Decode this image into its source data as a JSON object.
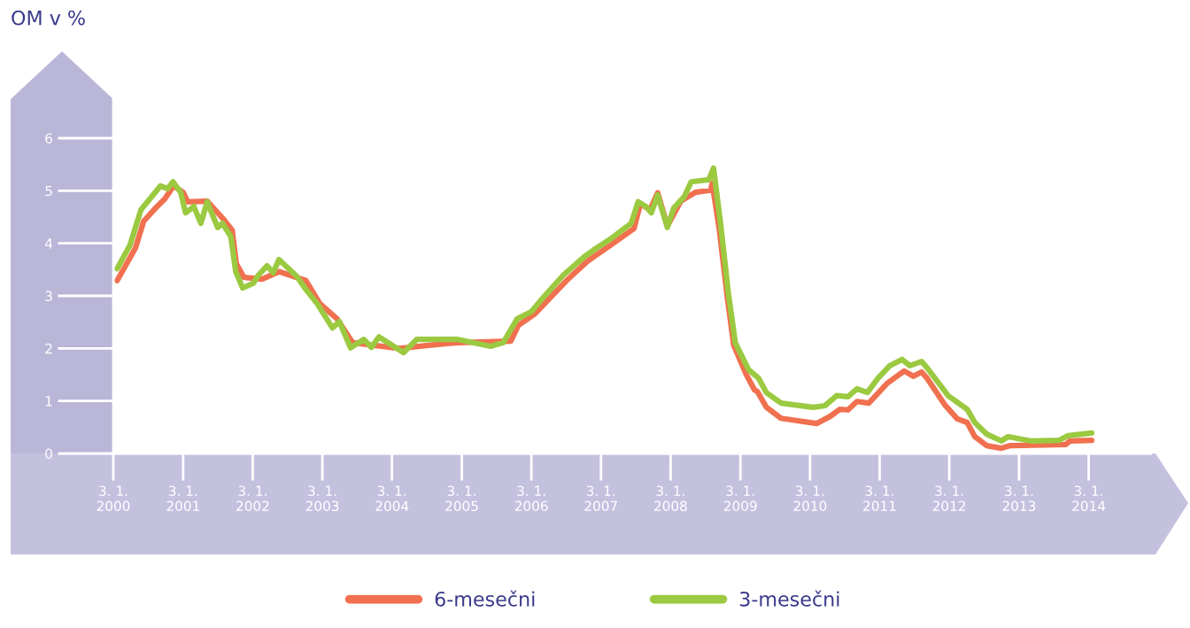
{
  "chart_data": {
    "type": "line",
    "ylabel": "OM v %",
    "xlim": [
      "2000-01-03",
      "2014-11-26"
    ],
    "ylim": [
      0,
      7.5
    ],
    "yticks": [
      0,
      1,
      2,
      3,
      4,
      5,
      6
    ],
    "xticks": [
      {
        "value": "2000-01-03",
        "label": "3. 1.\n2000"
      },
      {
        "value": "2001-01-03",
        "label": "3. 1.\n2001"
      },
      {
        "value": "2002-01-03",
        "label": "3. 1.\n2002"
      },
      {
        "value": "2003-01-03",
        "label": "3. 1.\n2003"
      },
      {
        "value": "2004-01-03",
        "label": "3. 1.\n2004"
      },
      {
        "value": "2005-01-03",
        "label": "3. 1.\n2005"
      },
      {
        "value": "2006-01-03",
        "label": "3. 1.\n2006"
      },
      {
        "value": "2007-01-03",
        "label": "3. 1.\n2007"
      },
      {
        "value": "2008-01-03",
        "label": "3. 1.\n2008"
      },
      {
        "value": "2009-01-03",
        "label": "3. 1.\n2009"
      },
      {
        "value": "2010-01-03",
        "label": "3. 1.\n2010"
      },
      {
        "value": "2011-01-03",
        "label": "3. 1.\n2011"
      },
      {
        "value": "2012-01-03",
        "label": "3. 1.\n2012"
      },
      {
        "value": "2013-01-03",
        "label": "3. 1.\n2013"
      },
      {
        "value": "2014-01-03",
        "label": "3. 1.\n2014"
      }
    ],
    "grid": false,
    "legend": "bottom",
    "marker": "none",
    "line_style": "solid",
    "series": [
      {
        "name": "6-mesečni",
        "color": "#f0704f",
        "x": [
          "2000-01-23",
          "2000-04-28",
          "2000-06-10",
          "2000-08-19",
          "2000-09-28",
          "2000-11-14",
          "2001-01-03",
          "2001-01-27",
          "2001-05-09",
          "2001-07-31",
          "2001-09-17",
          "2001-10-09",
          "2001-11-18",
          "2002-02-21",
          "2002-05-23",
          "2002-10-09",
          "2002-12-21",
          "2003-03-22",
          "2003-06-10",
          "2004-02-10",
          "2004-07-13",
          "2004-12-14",
          "2005-09-17",
          "2005-10-27",
          "2006-01-19",
          "2006-07-06",
          "2006-10-24",
          "2007-02-21",
          "2007-06-25",
          "2007-07-28",
          "2007-09-17",
          "2007-10-27",
          "2007-12-17",
          "2008-02-25",
          "2008-05-12",
          "2008-07-31",
          "2008-08-08",
          "2008-09-13",
          "2008-10-27",
          "2008-11-29",
          "2009-02-03",
          "2009-03-18",
          "2009-04-02",
          "2009-05-19",
          "2009-08-04",
          "2010-02-06",
          "2010-04-20",
          "2010-06-07",
          "2010-07-21",
          "2010-09-06",
          "2010-11-07",
          "2011-02-10",
          "2011-05-12",
          "2011-06-29",
          "2011-08-11",
          "2011-09-09",
          "2011-12-10",
          "2012-02-14",
          "2012-04-06",
          "2012-05-16",
          "2012-07-17",
          "2012-10-02",
          "2012-11-18",
          "2013-09-03",
          "2013-09-28",
          "2014-01-19"
        ],
        "values": [
          3.29,
          3.91,
          4.42,
          4.7,
          4.84,
          5.09,
          4.97,
          4.79,
          4.8,
          4.47,
          4.25,
          3.61,
          3.35,
          3.32,
          3.46,
          3.29,
          2.85,
          2.56,
          2.11,
          2.0,
          2.06,
          2.11,
          2.14,
          2.44,
          2.65,
          3.29,
          3.66,
          3.96,
          4.28,
          4.75,
          4.64,
          4.96,
          4.33,
          4.8,
          4.97,
          5.01,
          5.14,
          4.3,
          2.95,
          2.06,
          1.5,
          1.21,
          1.18,
          0.88,
          0.67,
          0.57,
          0.71,
          0.84,
          0.83,
          0.99,
          0.96,
          1.33,
          1.57,
          1.47,
          1.55,
          1.43,
          0.93,
          0.66,
          0.59,
          0.32,
          0.15,
          0.1,
          0.15,
          0.17,
          0.24,
          0.25
        ]
      },
      {
        "name": "3-mesečni",
        "color": "#9bc940",
        "x": [
          "2000-01-23",
          "2000-03-30",
          "2000-05-27",
          "2000-09-06",
          "2000-10-13",
          "2000-11-11",
          "2000-12-21",
          "2001-01-16",
          "2001-02-28",
          "2001-04-06",
          "2001-05-09",
          "2001-07-03",
          "2001-07-28",
          "2001-09-10",
          "2001-10-06",
          "2001-11-11",
          "2002-01-06",
          "2002-02-03",
          "2002-03-19",
          "2002-04-20",
          "2002-05-20",
          "2002-08-22",
          "2002-10-09",
          "2002-12-07",
          "2003-02-25",
          "2003-04-02",
          "2003-05-31",
          "2003-08-08",
          "2003-09-17",
          "2003-10-27",
          "2004-03-04",
          "2004-05-12",
          "2004-08-30",
          "2004-12-14",
          "2005-06-03",
          "2005-08-08",
          "2005-10-20",
          "2006-01-03",
          "2006-02-25",
          "2006-06-21",
          "2006-10-06",
          "2006-12-10",
          "2007-02-21",
          "2007-06-10",
          "2007-07-17",
          "2007-08-26",
          "2007-09-24",
          "2007-10-27",
          "2007-12-17",
          "2008-01-19",
          "2008-03-15",
          "2008-04-20",
          "2008-07-21",
          "2008-08-15",
          "2008-09-21",
          "2008-10-31",
          "2008-12-07",
          "2009-02-14",
          "2009-04-09",
          "2009-05-19",
          "2009-08-04",
          "2010-01-19",
          "2010-03-22",
          "2010-05-23",
          "2010-07-21",
          "2010-09-06",
          "2010-10-31",
          "2010-12-25",
          "2011-02-25",
          "2011-05-01",
          "2011-06-10",
          "2011-08-11",
          "2011-09-09",
          "2011-12-28",
          "2012-04-06",
          "2012-05-16",
          "2012-07-17",
          "2012-10-02",
          "2012-11-07",
          "2013-03-04",
          "2013-07-31",
          "2013-09-17",
          "2014-01-19"
        ],
        "values": [
          3.52,
          3.96,
          4.64,
          5.09,
          5.04,
          5.17,
          4.97,
          4.58,
          4.7,
          4.38,
          4.79,
          4.3,
          4.38,
          4.13,
          3.46,
          3.15,
          3.24,
          3.4,
          3.57,
          3.44,
          3.69,
          3.37,
          3.12,
          2.85,
          2.39,
          2.51,
          2.01,
          2.17,
          2.02,
          2.22,
          1.92,
          2.17,
          2.17,
          2.17,
          2.04,
          2.11,
          2.56,
          2.7,
          2.93,
          3.4,
          3.74,
          3.91,
          4.08,
          4.38,
          4.79,
          4.7,
          4.58,
          4.92,
          4.3,
          4.67,
          4.89,
          5.17,
          5.21,
          5.43,
          4.37,
          3.07,
          2.11,
          1.6,
          1.43,
          1.16,
          0.96,
          0.88,
          0.91,
          1.1,
          1.08,
          1.23,
          1.16,
          1.43,
          1.67,
          1.79,
          1.67,
          1.75,
          1.63,
          1.1,
          0.84,
          0.59,
          0.37,
          0.24,
          0.32,
          0.24,
          0.25,
          0.34,
          0.39
        ]
      }
    ]
  }
}
